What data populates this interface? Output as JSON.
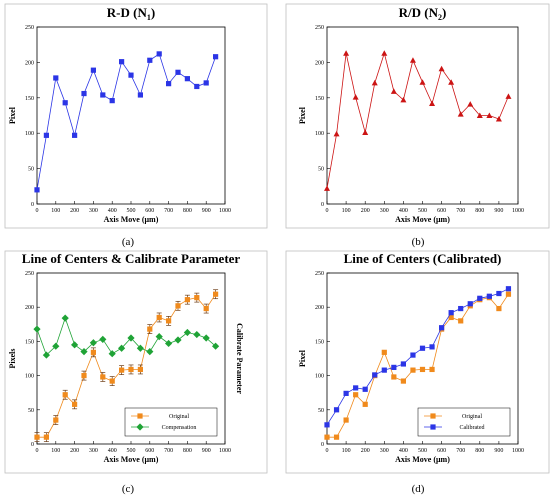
{
  "colors": {
    "blue": "#2b35e6",
    "red": "#cc1414",
    "orange": "#f08a1c",
    "green": "#1fa336",
    "brown": "#6b3a12",
    "axis": "#000000",
    "frame": "#bfbfbf"
  },
  "chart_data": [
    {
      "type": "line",
      "title": "R-D (N",
      "title_sub": "1",
      "title_end": ")",
      "xlabel": "Axis Move (μm)",
      "ylabel": "Pixel",
      "xlim": [
        0,
        1000
      ],
      "ylim": [
        0,
        250
      ],
      "xticks": [
        0,
        100,
        200,
        300,
        400,
        500,
        600,
        700,
        800,
        900,
        1000
      ],
      "yticks": [
        0,
        50,
        100,
        150,
        200,
        250
      ],
      "caption": "(a)",
      "series": [
        {
          "color": "#2b35e6",
          "marker": "square",
          "x": [
            0,
            50,
            100,
            150,
            200,
            250,
            300,
            350,
            400,
            450,
            500,
            550,
            600,
            650,
            700,
            750,
            800,
            850,
            900,
            950
          ],
          "y": [
            20,
            97,
            178,
            143,
            97,
            156,
            189,
            154,
            146,
            201,
            182,
            154,
            203,
            212,
            170,
            186,
            177,
            166,
            171,
            208
          ]
        }
      ]
    },
    {
      "type": "line",
      "title": "R/D (N",
      "title_sub": "2",
      "title_end": ")",
      "xlabel": "Axis Move (μm)",
      "ylabel": "Pixel",
      "xlim": [
        0,
        1000
      ],
      "ylim": [
        0,
        250
      ],
      "xticks": [
        0,
        100,
        200,
        300,
        400,
        500,
        600,
        700,
        800,
        900,
        1000
      ],
      "yticks": [
        0,
        50,
        100,
        150,
        200,
        250
      ],
      "caption": "(b)",
      "series": [
        {
          "color": "#cc1414",
          "marker": "triangle",
          "x": [
            0,
            50,
            100,
            150,
            200,
            250,
            300,
            350,
            400,
            450,
            500,
            550,
            600,
            650,
            700,
            750,
            800,
            850,
            900,
            950
          ],
          "y": [
            22,
            99,
            213,
            151,
            101,
            171,
            213,
            159,
            147,
            203,
            172,
            142,
            191,
            172,
            127,
            141,
            125,
            125,
            120,
            152
          ]
        }
      ]
    },
    {
      "type": "line",
      "title": "Line of Centers & Calibrate Parameter",
      "title_sub": "",
      "title_end": "",
      "xlabel": "Axis Move (μm)",
      "ylabel": "Pixels",
      "ylabel_right": "Calibrate Parameter",
      "xlim": [
        0,
        1000
      ],
      "ylim": [
        0,
        250
      ],
      "xticks": [
        0,
        100,
        200,
        300,
        400,
        500,
        600,
        700,
        800,
        900,
        1000
      ],
      "yticks": [
        0,
        50,
        100,
        150,
        200,
        250
      ],
      "legend_position": "bottom-right",
      "caption": "(c)",
      "series": [
        {
          "name": "Original",
          "color": "#f08a1c",
          "marker": "square",
          "error_bars": true,
          "x": [
            0,
            50,
            100,
            150,
            200,
            250,
            300,
            350,
            400,
            450,
            500,
            550,
            600,
            650,
            700,
            750,
            800,
            850,
            900,
            950
          ],
          "y": [
            10,
            10,
            35,
            72,
            58,
            100,
            134,
            98,
            92,
            108,
            109,
            109,
            168,
            185,
            180,
            202,
            211,
            214,
            198,
            219
          ]
        },
        {
          "name": "Compensation",
          "color": "#1fa336",
          "marker": "diamond",
          "x": [
            0,
            50,
            100,
            150,
            200,
            250,
            300,
            350,
            400,
            450,
            500,
            550,
            600,
            650,
            700,
            750,
            800,
            850,
            900,
            950
          ],
          "y": [
            168,
            130,
            143,
            184,
            145,
            135,
            148,
            153,
            132,
            140,
            155,
            140,
            135,
            157,
            147,
            152,
            163,
            160,
            155,
            143
          ]
        }
      ]
    },
    {
      "type": "line",
      "title": "Line of Centers (Calibrated)",
      "title_sub": "",
      "title_end": "",
      "xlabel": "Axis Move (μm)",
      "ylabel": "Pixel",
      "xlim": [
        0,
        1000
      ],
      "ylim": [
        0,
        250
      ],
      "xticks": [
        0,
        100,
        200,
        300,
        400,
        500,
        600,
        700,
        800,
        900,
        1000
      ],
      "yticks": [
        0,
        50,
        100,
        150,
        200,
        250
      ],
      "legend_position": "bottom-right",
      "caption": "(d)",
      "series": [
        {
          "name": "Original",
          "color": "#f08a1c",
          "marker": "square",
          "x": [
            0,
            50,
            100,
            150,
            200,
            250,
            300,
            350,
            400,
            450,
            500,
            550,
            600,
            650,
            700,
            750,
            800,
            850,
            900,
            950
          ],
          "y": [
            10,
            10,
            35,
            72,
            58,
            100,
            134,
            98,
            92,
            108,
            109,
            109,
            168,
            185,
            180,
            202,
            211,
            214,
            198,
            219
          ]
        },
        {
          "name": "Calibrated",
          "color": "#2b35e6",
          "marker": "square",
          "x": [
            0,
            50,
            100,
            150,
            200,
            250,
            300,
            350,
            400,
            450,
            500,
            550,
            600,
            650,
            700,
            750,
            800,
            850,
            900,
            950
          ],
          "y": [
            28,
            50,
            74,
            82,
            80,
            101,
            108,
            112,
            117,
            130,
            140,
            142,
            170,
            192,
            198,
            205,
            213,
            216,
            220,
            227
          ]
        }
      ]
    }
  ]
}
